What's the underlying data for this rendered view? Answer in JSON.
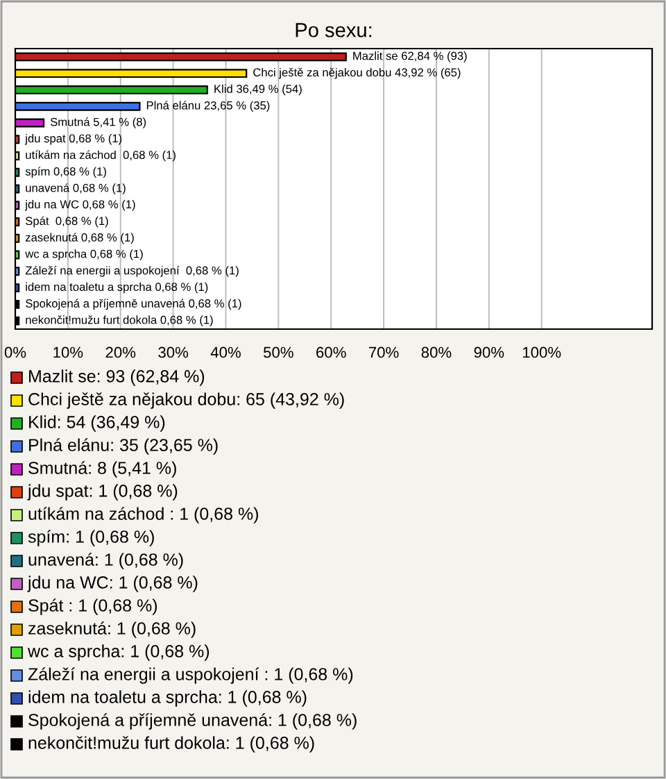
{
  "chart_data": {
    "type": "bar",
    "orientation": "horizontal",
    "title": "Po sexu:",
    "categories": [
      null,
      null,
      null,
      null,
      null,
      null,
      null,
      null,
      null,
      null,
      null,
      null,
      null,
      null,
      null,
      null,
      null
    ],
    "values": [
      62.84,
      43.92,
      36.49,
      23.65,
      5.41,
      0.68,
      0.68,
      0.68,
      0.68,
      0.68,
      0.68,
      0.68,
      0.68,
      0.68,
      0.68,
      0.68,
      0.68
    ],
    "colors": [
      "#c0201a",
      "#ffe000",
      "#20b020",
      "#4070e0",
      "#c020c0",
      "#e04010",
      "#c8f080",
      "#209060",
      "#207080",
      "#c060c0",
      "#e07010",
      "#e0a000",
      "#50e030",
      "#6090e0",
      "#3050b0",
      "#000000",
      "#000000"
    ],
    "value_labels": [
      "Mazlit se 62,84 % (93)",
      "Chci ještě za nějakou dobu 43,92 % (65)",
      "Klid 36,49 % (54)",
      "Plná elánu 23,65 % (35)",
      "Smutná 5,41 % (8)",
      "jdu spat 0,68 % (1)",
      "utíkám na záchod  0,68 % (1)",
      "spím 0,68 % (1)",
      "unavená 0,68 % (1)",
      "jdu na WC 0,68 % (1)",
      "Spát  0,68 % (1)",
      "zaseknutá 0,68 % (1)",
      "wc a sprcha 0,68 % (1)",
      "Záleží na energii a uspokojení  0,68 % (1)",
      "idem na toaletu a sprcha 0,68 % (1)",
      "Spokojená a příjemně unavená 0,68 % (1)",
      "nekončit!mužu furt dokola 0,68 % (1)"
    ],
    "annotations": [
      "Mazlit se: 93 (62,84 %)",
      "Chci ještě za nějakou dobu: 65 (43,92 %)",
      "Klid: 54 (36,49 %)",
      "Plná elánu: 35 (23,65 %)",
      "Smutná: 8 (5,41 %)",
      "jdu spat: 1 (0,68 %)",
      "utíkám na záchod : 1 (0,68 %)",
      "spím: 1 (0,68 %)",
      "unavená: 1 (0,68 %)",
      "jdu na WC: 1 (0,68 %)",
      "Spát : 1 (0,68 %)",
      "zaseknutá: 1 (0,68 %)",
      "wc a sprcha: 1 (0,68 %)",
      "Záleží na energii a uspokojení : 1 (0,68 %)",
      "idem na toaletu a sprcha: 1 (0,68 %)",
      "Spokojená a příjemně unavená: 1 (0,68 %)",
      "nekončit!mužu furt dokola: 1 (0,68 %)"
    ],
    "xlim": [
      0,
      121
    ],
    "xticks": [
      {
        "value": 0,
        "label": "0%"
      },
      {
        "value": 10,
        "label": "10%"
      },
      {
        "value": 20,
        "label": "20%"
      },
      {
        "value": 30,
        "label": "30%"
      },
      {
        "value": 40,
        "label": "40%"
      },
      {
        "value": 50,
        "label": "50%"
      },
      {
        "value": 60,
        "label": "60%"
      },
      {
        "value": 70,
        "label": "70%"
      },
      {
        "value": 80,
        "label": "80%"
      },
      {
        "value": 90,
        "label": "90%"
      },
      {
        "value": 100,
        "label": "100%"
      }
    ],
    "grid": "x",
    "tick_labels": "x"
  }
}
